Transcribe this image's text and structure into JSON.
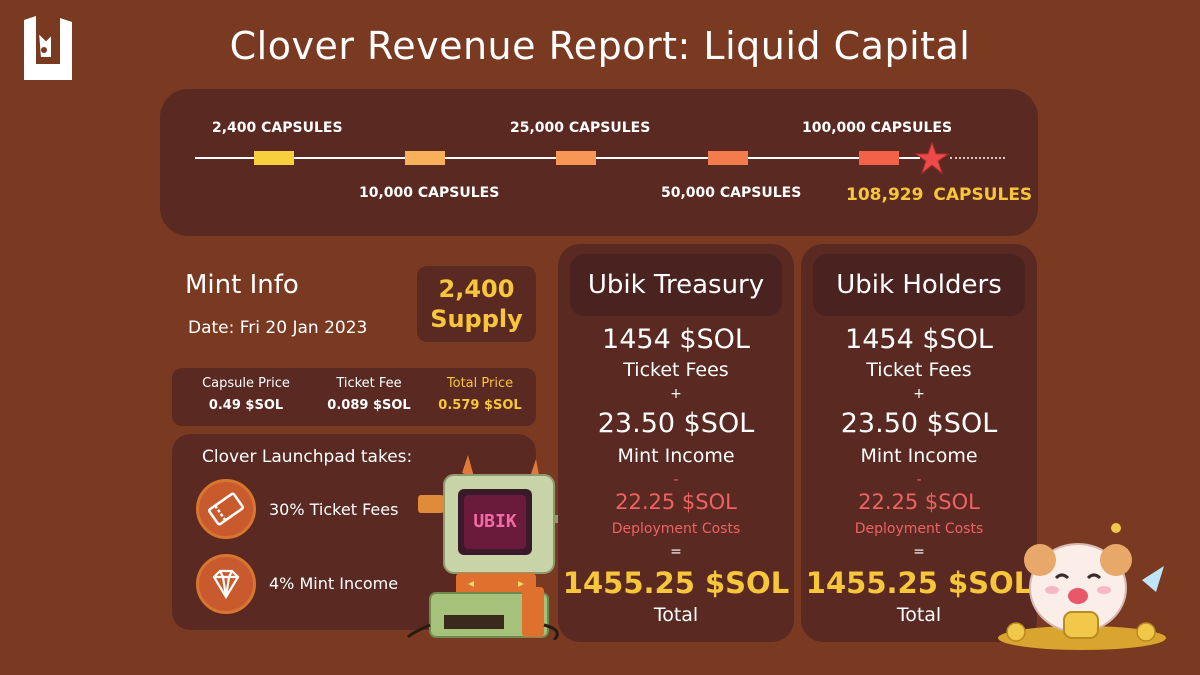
{
  "header": {
    "title": "Clover Revenue Report: Liquid Capital"
  },
  "timeline": {
    "milestones": [
      {
        "label": "2,400 CAPSULES",
        "color": "#f8cf3c"
      },
      {
        "label": "10,000 CAPSULES",
        "color": "#f8b05a"
      },
      {
        "label": "25,000 CAPSULES",
        "color": "#f89656"
      },
      {
        "label": "50,000 CAPSULES",
        "color": "#f47c4c"
      },
      {
        "label": "100,000 CAPSULES",
        "color": "#f26148"
      }
    ],
    "current": "108,929 CAPSULES",
    "current_icon": "star-icon",
    "star_color": "#ef4a4a"
  },
  "mint_info": {
    "title": "Mint Info",
    "date": "Date: Fri 20 Jan 2023",
    "supply_value": "2,400",
    "supply_label": "Supply",
    "prices": [
      {
        "label": "Capsule Price",
        "value": "0.49 $SOL"
      },
      {
        "label": "Ticket Fee",
        "value": "0.089 $SOL"
      },
      {
        "label": "Total Price",
        "value": "0.579 $SOL"
      }
    ]
  },
  "launchpad": {
    "title": "Clover Launchpad takes:",
    "items": [
      {
        "icon": "ticket-icon",
        "text": "30% Ticket Fees"
      },
      {
        "icon": "diamond-icon",
        "text": "4% Mint Income"
      }
    ]
  },
  "cards": [
    {
      "title": "Ubik Treasury",
      "ticket_value": "1454 $SOL",
      "ticket_label": "Ticket Fees",
      "plus": "+",
      "mint_value": "23.50 $SOL",
      "mint_label": "Mint Income",
      "minus": "-",
      "deploy_value": "22.25 $SOL",
      "deploy_label": "Deployment Costs",
      "equals": "=",
      "total_value": "1455.25 $SOL",
      "total_label": "Total"
    },
    {
      "title": "Ubik Holders",
      "ticket_value": "1454 $SOL",
      "ticket_label": "Ticket Fees",
      "plus": "+",
      "mint_value": "23.50 $SOL",
      "mint_label": "Mint Income",
      "minus": "-",
      "deploy_value": "22.25 $SOL",
      "deploy_label": "Deployment Costs",
      "equals": "=",
      "total_value": "1455.25 $SOL",
      "total_label": "Total"
    }
  ],
  "robot_screen_text": "UBIK",
  "colors": {
    "background": "#7a3a22",
    "panel": "#5a2a22",
    "accent_gold": "#f8c63a",
    "accent_red": "#ee6262"
  }
}
